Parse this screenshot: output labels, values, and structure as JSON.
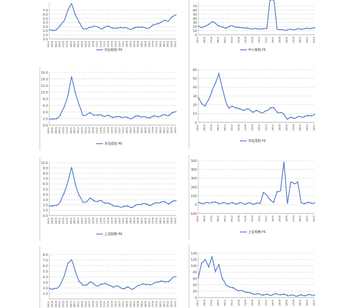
{
  "colors": {
    "line": "#4472c4",
    "grid": "#bfbfbf",
    "axis": "#808080",
    "text": "#404040",
    "special_tick": "#c00000"
  },
  "x_tick_labels": [
    "0501",
    "0506",
    "0605",
    "0610",
    "0705",
    "0709",
    "0802",
    "0807",
    "0812",
    "0905",
    "0910",
    "1003",
    "1008",
    "1101",
    "1106",
    "1111",
    "1204",
    "1209",
    "1302",
    "1307",
    "1312",
    "1405",
    "1410",
    "1503",
    "1508",
    "1601",
    "1606",
    "1611",
    "1704",
    "1709",
    "1802",
    "1807",
    "1812",
    "1905",
    "1910"
  ],
  "chart_data": [
    {
      "type": "line",
      "ylim": [
        0,
        9
      ],
      "yticks": [
        0.0,
        1.0,
        2.0,
        3.0,
        4.0,
        5.0,
        6.0,
        7.0
      ],
      "legend": "创业板指-PB",
      "y": [
        2.2,
        2.0,
        2.4,
        3.2,
        4.5,
        7.0,
        8.6,
        6.0,
        4.0,
        2.6,
        2.4,
        2.8,
        3.2,
        2.8,
        2.5,
        2.9,
        3.1,
        2.7,
        2.5,
        2.9,
        2.7,
        2.6,
        2.4,
        2.7,
        3.0,
        2.8,
        2.6,
        2.8,
        3.4,
        3.8,
        4.0,
        4.6,
        4.4,
        5.4,
        6.0
      ]
    },
    {
      "type": "line",
      "ylim": [
        0,
        80
      ],
      "yticks": [
        0,
        10,
        20,
        30,
        40,
        50,
        60,
        70
      ],
      "legend": "中小板指-PE",
      "y": [
        22,
        18,
        20,
        26,
        32,
        28,
        22,
        18,
        17,
        20,
        22,
        19,
        17,
        18,
        16,
        15,
        15,
        14,
        15,
        14,
        15,
        95,
        92,
        14,
        12,
        12,
        12,
        13,
        13,
        14,
        14,
        15,
        15,
        16,
        17
      ]
    },
    {
      "type": "line",
      "ylim": [
        0,
        16
      ],
      "yticks": [
        0.0,
        2.0,
        4.0,
        6.0,
        8.0,
        10.0,
        12.0,
        14.0,
        16.0
      ],
      "legend": "深证成指-PB",
      "y": [
        1.8,
        1.7,
        2.1,
        3.0,
        5.5,
        9.0,
        14.5,
        10.0,
        6.0,
        3.0,
        3.2,
        3.6,
        3.2,
        2.9,
        3.1,
        2.7,
        2.8,
        2.5,
        2.4,
        2.6,
        2.4,
        2.2,
        2.1,
        2.5,
        2.9,
        2.5,
        2.3,
        2.4,
        2.6,
        2.7,
        2.8,
        3.1,
        3.0,
        3.6,
        4.2
      ]
    },
    {
      "type": "line",
      "ylim": [
        0,
        60
      ],
      "yticks": [
        0,
        10,
        20,
        30,
        40,
        50,
        60
      ],
      "legend": "深证成指-PE",
      "y": [
        28,
        22,
        18,
        26,
        36,
        44,
        56,
        38,
        24,
        16,
        18,
        17,
        15,
        14,
        15,
        14,
        12,
        13,
        12,
        11,
        13,
        17,
        16,
        12,
        11,
        9,
        4,
        5,
        5,
        6,
        6,
        7,
        7,
        8,
        9
      ]
    },
    {
      "type": "line",
      "ylim": [
        0,
        10
      ],
      "yticks": [
        0.0,
        1.0,
        2.0,
        3.0,
        4.0,
        5.0,
        6.0,
        7.0,
        8.0,
        9.0,
        10.0
      ],
      "legend": "上证指数-PB",
      "y": [
        1.9,
        1.7,
        2.0,
        2.6,
        4.2,
        6.5,
        9.0,
        6.0,
        3.8,
        2.5,
        2.7,
        3.2,
        2.9,
        2.6,
        2.8,
        2.4,
        2.2,
        2.0,
        1.7,
        1.6,
        1.8,
        1.7,
        1.6,
        1.8,
        2.1,
        2.3,
        2.1,
        2.0,
        2.2,
        2.4,
        2.6,
        2.5,
        2.3,
        2.6,
        2.8
      ]
    },
    {
      "type": "line",
      "ylim": [
        -100,
        500
      ],
      "yticks": [
        -100,
        0,
        100,
        200,
        300,
        400,
        500
      ],
      "legend": "上证指数-PE",
      "y": [
        20,
        18,
        16,
        20,
        28,
        22,
        18,
        16,
        17,
        15,
        16,
        14,
        15,
        14,
        13,
        14,
        12,
        13,
        12,
        140,
        100,
        60,
        20,
        150,
        160,
        480,
        20,
        250,
        240,
        260,
        20,
        18,
        19,
        20,
        21
      ]
    },
    {
      "type": "line",
      "ylim": [
        0,
        8
      ],
      "yticks": [
        1.0,
        2.0,
        3.0,
        4.0,
        5.0,
        6.0,
        7.0,
        8.0
      ],
      "legend": "",
      "y": [
        2.0,
        1.7,
        1.9,
        2.6,
        4.0,
        6.5,
        7.0,
        5.0,
        3.2,
        2.4,
        2.6,
        3.0,
        2.7,
        2.3,
        2.6,
        2.9,
        2.4,
        2.2,
        2.4,
        2.0,
        1.9,
        2.1,
        1.8,
        2.0,
        2.4,
        2.8,
        2.5,
        2.6,
        2.8,
        3.0,
        3.3,
        3.0,
        3.2,
        3.8,
        4.0
      ]
    },
    {
      "type": "line",
      "ylim": [
        0,
        140
      ],
      "yticks": [
        0,
        20,
        40,
        60,
        80,
        100,
        120,
        140
      ],
      "legend": "",
      "y": [
        60,
        110,
        120,
        95,
        130,
        80,
        105,
        60,
        40,
        35,
        30,
        26,
        22,
        20,
        18,
        14,
        12,
        11,
        10,
        9,
        9,
        8,
        10,
        11,
        10,
        9,
        8,
        7,
        6,
        6,
        7,
        7,
        8,
        8,
        9
      ]
    }
  ]
}
